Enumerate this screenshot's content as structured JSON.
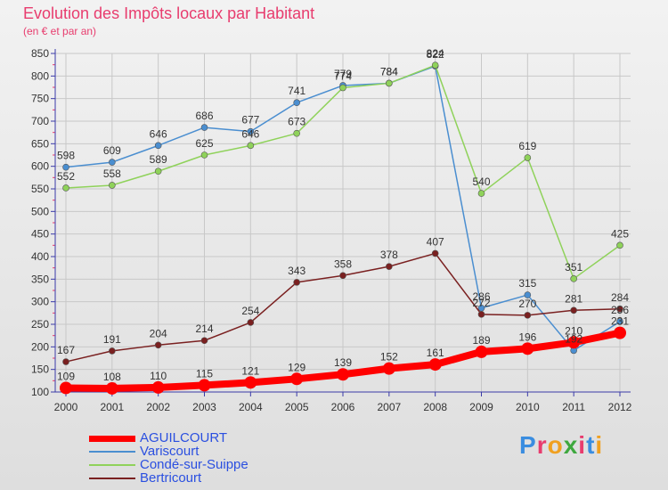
{
  "header": {
    "title": "Evolution des Impôts locaux par Habitant",
    "subtitle": "(en € et par an)"
  },
  "logo": {
    "text": "Proxiti",
    "colors": [
      "#3a8de0",
      "#e83c6e",
      "#f0a020",
      "#3fa83f",
      "#e83c6e",
      "#3a8de0",
      "#f0a020"
    ]
  },
  "colors": {
    "title": "#e83c6e",
    "axis": "#3a3aa8",
    "tick_red": "#e83c6e",
    "grid": "#c8c8c8",
    "label": "#333333"
  },
  "chart_data": {
    "type": "line",
    "x": [
      "2000",
      "2001",
      "2002",
      "2003",
      "2004",
      "2005",
      "2006",
      "2007",
      "2008",
      "2009",
      "2010",
      "2011",
      "2012"
    ],
    "ylim": [
      100,
      850
    ],
    "yticks": [
      "100",
      "150",
      "200",
      "250",
      "300",
      "350",
      "400",
      "450",
      "500",
      "550",
      "600",
      "650",
      "700",
      "750",
      "800",
      "850"
    ],
    "grid": true,
    "legend_position": "bottom-left",
    "series": [
      {
        "name": "AGUILCOURT",
        "color": "#ff0000",
        "values": [
          109,
          108,
          110,
          115,
          121,
          129,
          139,
          152,
          161,
          189,
          196,
          210,
          231
        ],
        "labels": [
          "109",
          "108",
          "110",
          "115",
          "121",
          "129",
          "139",
          "152",
          "161",
          "189",
          "196",
          "210",
          "231"
        ]
      },
      {
        "name": "Variscourt",
        "color": "#4a8ed0",
        "values": [
          598,
          609,
          646,
          686,
          677,
          741,
          779,
          784,
          822,
          286,
          315,
          192,
          256
        ],
        "labels": [
          "598",
          "609",
          "646",
          "686",
          "677",
          "741",
          "779",
          "784",
          "822",
          "286",
          "315",
          "192",
          "256"
        ]
      },
      {
        "name": "Condé-sur-Suippe",
        "color": "#8fd25a",
        "values": [
          552,
          558,
          589,
          625,
          646,
          673,
          774,
          784,
          824,
          540,
          619,
          351,
          425
        ],
        "labels": [
          "552",
          "558",
          "589",
          "625",
          "646",
          "673",
          "774",
          "784",
          "824",
          "540",
          "619",
          "351",
          "425"
        ]
      },
      {
        "name": "Bertricourt",
        "color": "#7a2020",
        "values": [
          167,
          191,
          204,
          214,
          254,
          343,
          358,
          378,
          407,
          272,
          270,
          281,
          284
        ],
        "labels": [
          "167",
          "191",
          "204",
          "214",
          "254",
          "343",
          "358",
          "378",
          "407",
          "272",
          "270",
          "281",
          "284"
        ]
      }
    ]
  }
}
